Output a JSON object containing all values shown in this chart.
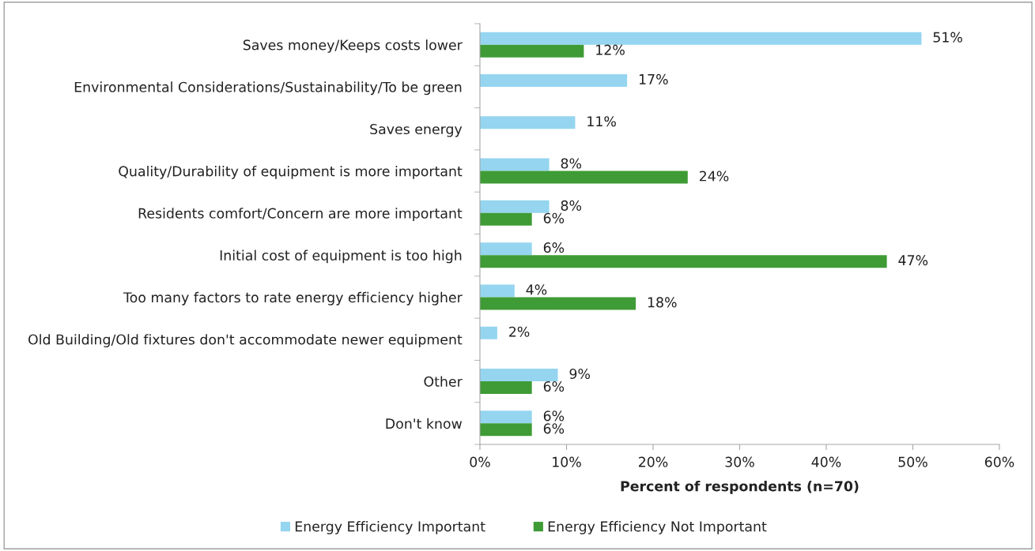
{
  "chart_data": {
    "type": "bar",
    "orientation": "horizontal",
    "categories": [
      "Saves money/Keeps costs lower",
      "Environmental Considerations/Sustainability/To be green",
      "Saves energy",
      "Quality/Durability of equipment is more important",
      "Residents comfort/Concern are more important",
      "Initial cost of equipment is too high",
      "Too many factors to rate energy efficiency higher",
      "Old Building/Old fixtures don't accommodate newer equipment",
      "Other",
      "Don't know"
    ],
    "series": [
      {
        "name": "Energy Efficiency Important",
        "color": "#95d5f0",
        "values": [
          51,
          17,
          11,
          8,
          8,
          6,
          4,
          2,
          9,
          6
        ],
        "value_labels": [
          "51%",
          "17%",
          "11%",
          "8%",
          "8%",
          "6%",
          "4%",
          "2%",
          "9%",
          "6%"
        ]
      },
      {
        "name": "Energy Efficiency Not Important",
        "color": "#3e9b35",
        "values": [
          12,
          null,
          null,
          24,
          6,
          47,
          18,
          null,
          6,
          6
        ],
        "value_labels": [
          "12%",
          null,
          null,
          "24%",
          "6%",
          "47%",
          "18%",
          null,
          "6%",
          "6%"
        ]
      }
    ],
    "xlabel": "Percent of respondents (n=70)",
    "xlim": [
      0,
      60
    ],
    "xticks": [
      {
        "value": 0,
        "label": "0%"
      },
      {
        "value": 10,
        "label": "10%"
      },
      {
        "value": 20,
        "label": "20%"
      },
      {
        "value": 30,
        "label": "30%"
      },
      {
        "value": 40,
        "label": "40%"
      },
      {
        "value": 50,
        "label": "50%"
      },
      {
        "value": 60,
        "label": "60%"
      }
    ],
    "grid": false,
    "legend": "bottom"
  }
}
